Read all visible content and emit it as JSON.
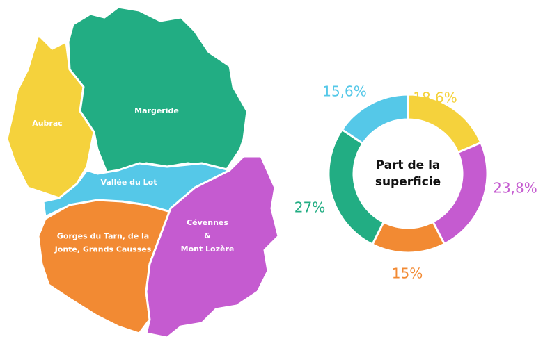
{
  "map": {
    "regions": [
      {
        "label": [
          "Aubrac"
        ],
        "color": "#f5d23c"
      },
      {
        "label": [
          "Margeride"
        ],
        "color": "#22ad83"
      },
      {
        "label": [
          "Vallée du Lot"
        ],
        "color": "#55c8e8"
      },
      {
        "label": [
          "Gorges du Tarn, de  la",
          "Jonte, Grands Causses"
        ],
        "color": "#f28a33"
      },
      {
        "label": [
          "Cévennes",
          "&",
          "Mont Lozère"
        ],
        "color": "#c55bd0"
      }
    ]
  },
  "chart_data": {
    "type": "donut",
    "title": [
      "Part de la",
      "superficie"
    ],
    "values": [
      18.6,
      23.8,
      15,
      27,
      15.6
    ],
    "value_labels": [
      "18,6%",
      "23,8%",
      "15%",
      "27%",
      "15,6%"
    ],
    "colors": [
      "#f5d23c",
      "#c55bd0",
      "#f28a33",
      "#22ad83",
      "#55c8e8"
    ]
  }
}
